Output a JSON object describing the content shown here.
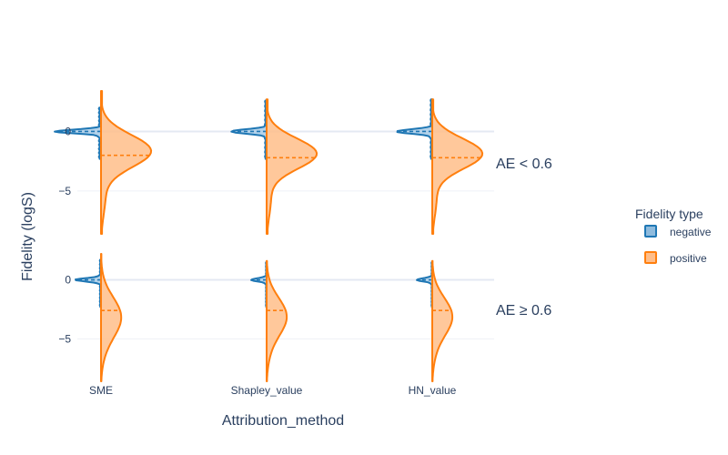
{
  "chart_data": {
    "type": "violin",
    "xlabel": "Attribution_method",
    "ylabel": "Fidelity (logS)",
    "categories": [
      "SME",
      "Shapley_value",
      "HN_value"
    ],
    "facets": [
      {
        "label": "AE < 0.6",
        "ylim": [
          -8.6,
          3.4
        ],
        "yticks": [
          0,
          -5
        ],
        "tick_labels": [
          "0",
          "−5"
        ],
        "series": [
          {
            "name": "negative",
            "color": "#1f77b4",
            "fill": "#a8cbe6",
            "side": "left",
            "ymin": [
              -2.3,
              -2.3,
              -2.3
            ],
            "ymax": [
              2.0,
              2.6,
              2.7
            ],
            "mean": [
              0.0,
              0.0,
              0.0
            ],
            "width": [
              0.9,
              0.7,
              0.7
            ]
          },
          {
            "name": "positive",
            "color": "#ff7f0e",
            "fill": "#ffbe8a",
            "side": "right",
            "ymin": [
              -8.6,
              -8.6,
              -8.6
            ],
            "ymax": [
              3.4,
              2.7,
              2.7
            ],
            "mean": [
              -2.0,
              -2.2,
              -2.2
            ],
            "width": [
              1.0,
              1.0,
              1.0
            ]
          }
        ]
      },
      {
        "label": "AE ≥ 0.6",
        "ylim": [
          -8.6,
          2.2
        ],
        "yticks": [
          0,
          -5
        ],
        "tick_labels": [
          "0",
          "−5"
        ],
        "series": [
          {
            "name": "negative",
            "color": "#1f77b4",
            "fill": "#a8cbe6",
            "side": "left",
            "ymin": [
              -2.3,
              -2.3,
              -2.3
            ],
            "ymax": [
              1.7,
              1.5,
              1.5
            ],
            "mean": [
              0.0,
              0.0,
              0.0
            ],
            "width": [
              0.5,
              0.3,
              0.3
            ]
          },
          {
            "name": "positive",
            "color": "#ff7f0e",
            "fill": "#ffbe8a",
            "side": "right",
            "ymin": [
              -8.6,
              -8.6,
              -8.6
            ],
            "ymax": [
              2.2,
              1.6,
              1.6
            ],
            "mean": [
              -2.6,
              -2.6,
              -2.6
            ],
            "width": [
              0.4,
              0.4,
              0.4
            ]
          }
        ]
      }
    ],
    "legend": {
      "title": "Fidelity type",
      "placement": "right",
      "items": [
        "negative",
        "positive"
      ]
    },
    "grid": true
  }
}
